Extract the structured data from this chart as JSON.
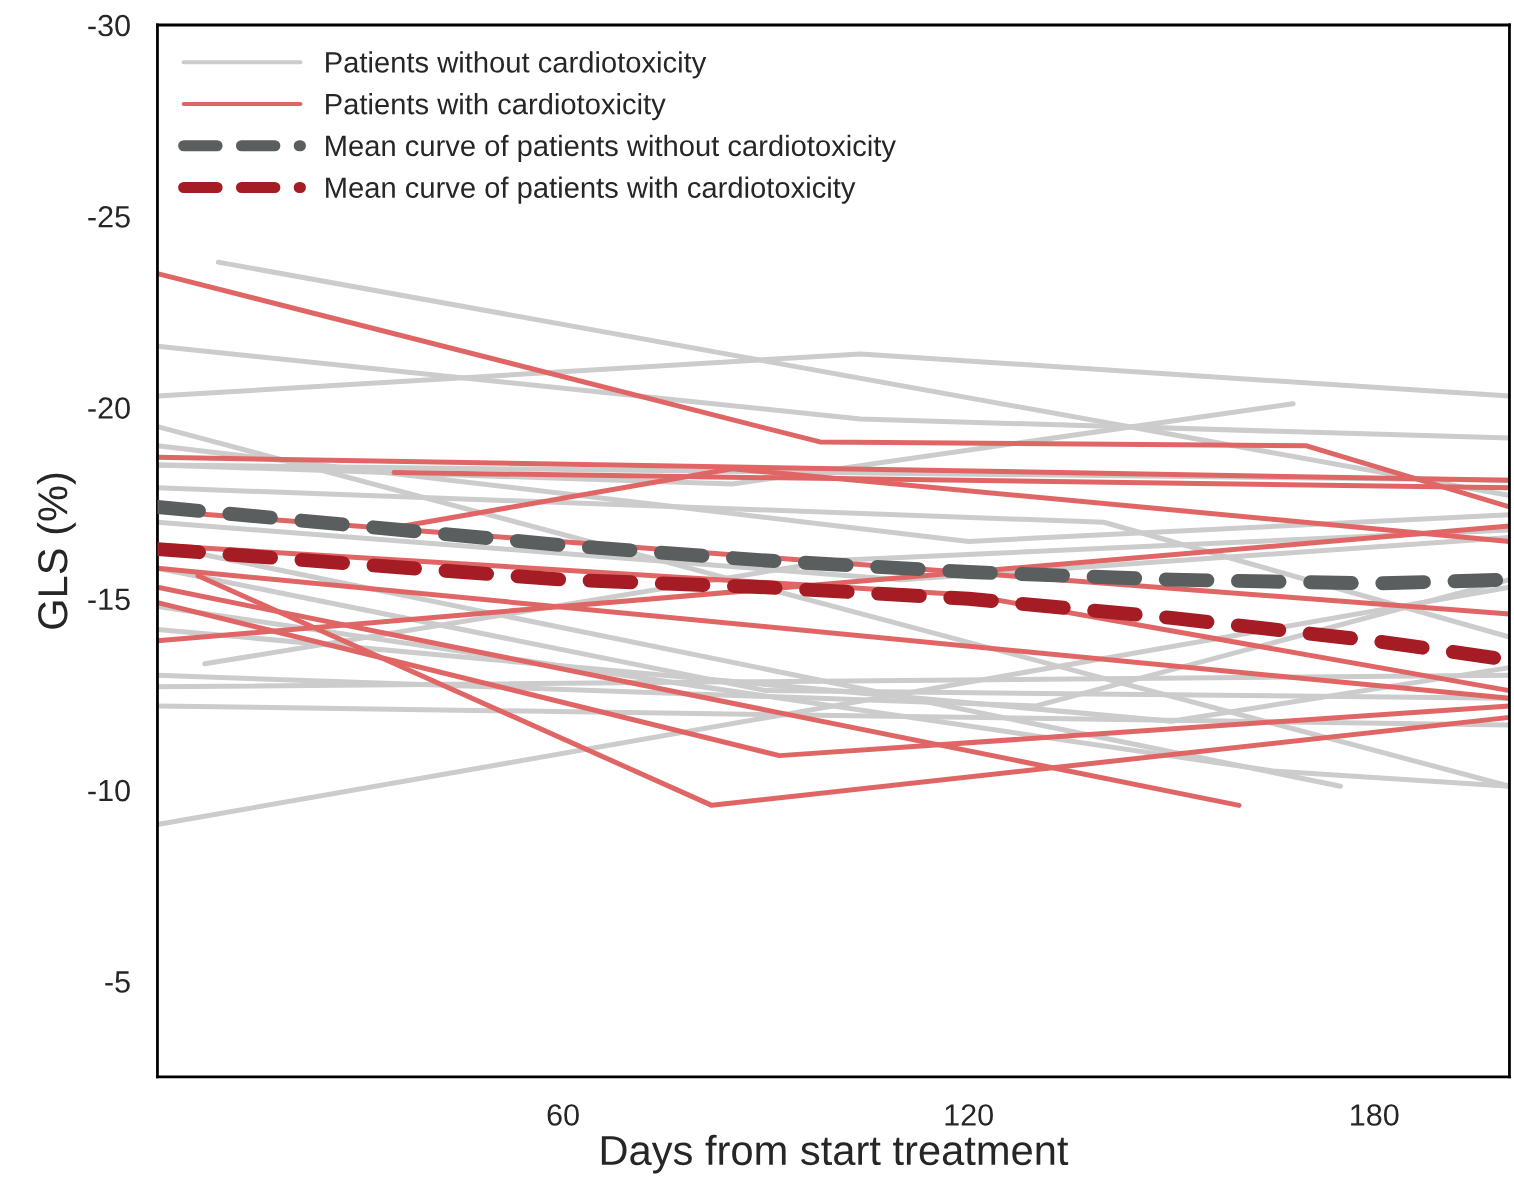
{
  "chart_data": {
    "type": "line",
    "xlabel": "Days from start treatment",
    "ylabel": "GLS (%)",
    "xlim": [
      0,
      200
    ],
    "xticks": [
      60,
      120,
      180
    ],
    "ylim": [
      -2.5,
      -30
    ],
    "yticks": [
      -30,
      -25,
      -20,
      -15,
      -10,
      -5
    ],
    "grid": false,
    "legend": "top left",
    "marker": "none",
    "series": [
      {
        "name": "Patients without cardiotoxicity",
        "color": "#cccccc",
        "line_style": "solid",
        "x": [
          9,
          200
        ],
        "values": [
          -23.8,
          -17.7
        ]
      },
      {
        "color": "#cccccc",
        "line_style": "solid",
        "x": [
          0,
          104,
          200
        ],
        "values": [
          -21.6,
          -19.7,
          -19.2
        ]
      },
      {
        "color": "#cccccc",
        "line_style": "solid",
        "x": [
          0,
          104,
          200
        ],
        "values": [
          -20.3,
          -21.4,
          -20.3
        ]
      },
      {
        "color": "#cccccc",
        "line_style": "solid",
        "x": [
          0,
          85,
          168
        ],
        "values": [
          -18.5,
          -18.0,
          -20.1
        ]
      },
      {
        "color": "#cccccc",
        "line_style": "solid",
        "x": [
          0,
          200
        ],
        "values": [
          -18.5,
          -18.1
        ]
      },
      {
        "color": "#cccccc",
        "line_style": "solid",
        "x": [
          0,
          200
        ],
        "values": [
          -9.1,
          -15.3
        ]
      },
      {
        "color": "#cccccc",
        "line_style": "solid",
        "x": [
          0,
          200
        ],
        "values": [
          -12.7,
          -13.0
        ]
      },
      {
        "color": "#cccccc",
        "line_style": "solid",
        "x": [
          0,
          200
        ],
        "values": [
          -12.2,
          -11.7
        ]
      },
      {
        "color": "#cccccc",
        "line_style": "solid",
        "x": [
          7,
          100,
          200
        ],
        "values": [
          -13.3,
          -16.0,
          -16.8
        ]
      },
      {
        "color": "#cccccc",
        "line_style": "solid",
        "x": [
          0,
          175
        ],
        "values": [
          -16.4,
          -10.1
        ]
      },
      {
        "color": "#cccccc",
        "line_style": "solid",
        "x": [
          0,
          200
        ],
        "values": [
          -19.5,
          -10.1
        ]
      },
      {
        "color": "#cccccc",
        "line_style": "solid",
        "x": [
          0,
          120,
          200
        ],
        "values": [
          -19.0,
          -16.5,
          -17.2
        ]
      },
      {
        "color": "#cccccc",
        "line_style": "solid",
        "x": [
          0,
          150,
          200
        ],
        "values": [
          -14.2,
          -11.8,
          -13.2
        ]
      },
      {
        "color": "#cccccc",
        "line_style": "solid",
        "x": [
          0,
          140,
          200
        ],
        "values": [
          -17.9,
          -17.0,
          -14.0
        ]
      },
      {
        "color": "#cccccc",
        "line_style": "solid",
        "x": [
          0,
          90,
          200
        ],
        "values": [
          -15.8,
          -12.6,
          -12.4
        ]
      },
      {
        "color": "#cccccc",
        "line_style": "solid",
        "x": [
          0,
          130,
          200
        ],
        "values": [
          -13.0,
          -12.2,
          -15.5
        ]
      },
      {
        "color": "#cccccc",
        "line_style": "solid",
        "x": [
          0,
          110,
          200
        ],
        "values": [
          -17.0,
          -15.5,
          -16.6
        ]
      },
      {
        "color": "#cccccc",
        "line_style": "solid",
        "x": [
          0,
          165,
          200
        ],
        "values": [
          -14.8,
          -10.5,
          -10.1
        ]
      },
      {
        "name": "Patients with cardiotoxicity",
        "color": "#e06666",
        "line_style": "solid",
        "x": [
          0,
          98,
          170,
          200
        ],
        "values": [
          -23.5,
          -19.1,
          -19.0,
          -17.4
        ]
      },
      {
        "color": "#e06666",
        "line_style": "solid",
        "x": [
          0,
          200
        ],
        "values": [
          -18.7,
          -18.1
        ]
      },
      {
        "color": "#e06666",
        "line_style": "solid",
        "x": [
          35,
          200
        ],
        "values": [
          -18.3,
          -17.9
        ]
      },
      {
        "color": "#e06666",
        "line_style": "solid",
        "x": [
          0,
          200
        ],
        "values": [
          -17.3,
          -14.6
        ]
      },
      {
        "color": "#e06666",
        "line_style": "solid",
        "x": [
          0,
          200
        ],
        "values": [
          -13.9,
          -16.9
        ]
      },
      {
        "color": "#e06666",
        "line_style": "solid",
        "x": [
          33,
          85,
          200
        ],
        "values": [
          -16.8,
          -18.4,
          -16.5
        ]
      },
      {
        "color": "#e06666",
        "line_style": "solid",
        "x": [
          0,
          92,
          200
        ],
        "values": [
          -14.9,
          -10.9,
          -12.2
        ]
      },
      {
        "color": "#e06666",
        "line_style": "solid",
        "x": [
          6,
          82,
          200
        ],
        "values": [
          -15.6,
          -9.6,
          -11.9
        ]
      },
      {
        "color": "#e06666",
        "line_style": "solid",
        "x": [
          0,
          160
        ],
        "values": [
          -15.3,
          -9.6
        ]
      },
      {
        "color": "#e06666",
        "line_style": "solid",
        "x": [
          0,
          200
        ],
        "values": [
          -15.8,
          -12.4
        ]
      },
      {
        "color": "#e06666",
        "line_style": "solid",
        "x": [
          0,
          120,
          200
        ],
        "values": [
          -16.4,
          -15.1,
          -12.6
        ]
      },
      {
        "name": "Mean curve of patients without cardiotoxicity",
        "color": "#5a5e5e",
        "line_style": "dashed",
        "x": [
          0,
          30,
          60,
          90,
          120,
          150,
          180,
          200
        ],
        "values": [
          -17.4,
          -16.9,
          -16.4,
          -16.0,
          -15.7,
          -15.5,
          -15.4,
          -15.5
        ]
      },
      {
        "name": "Mean curve of patients with cardiotoxicity",
        "color": "#a61c24",
        "line_style": "dashed",
        "x": [
          0,
          30,
          60,
          90,
          120,
          150,
          180,
          200
        ],
        "values": [
          -16.3,
          -15.9,
          -15.5,
          -15.3,
          -15.0,
          -14.5,
          -13.9,
          -13.4
        ]
      }
    ]
  }
}
